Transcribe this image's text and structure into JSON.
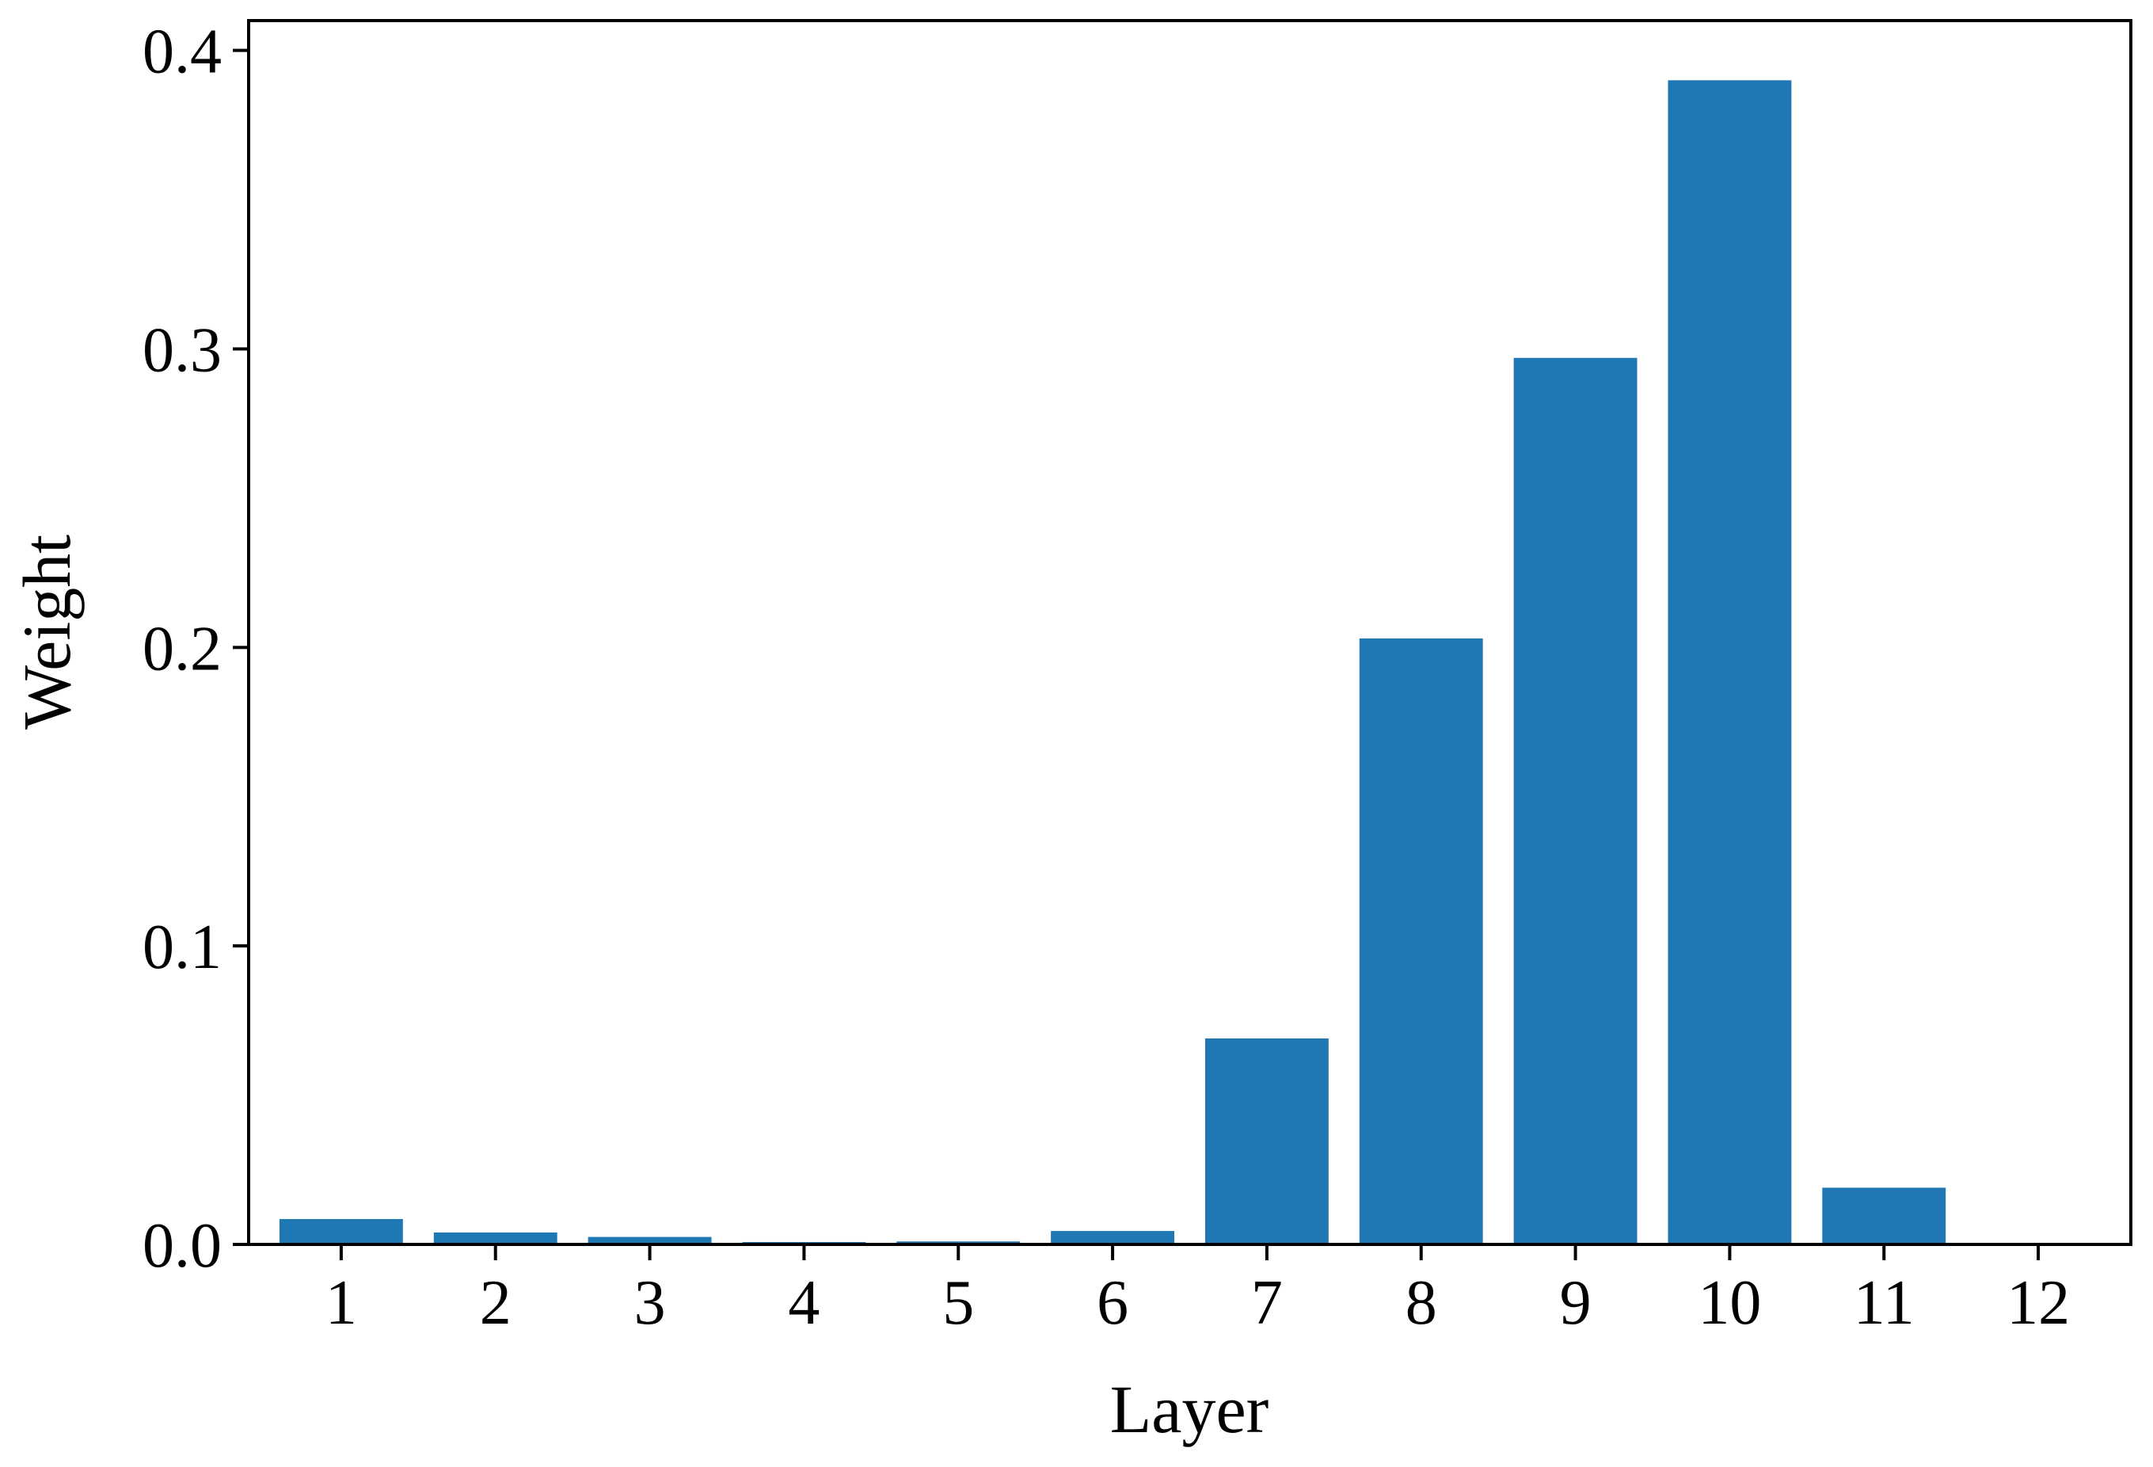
{
  "chart_data": {
    "type": "bar",
    "title": "",
    "xlabel": "Layer",
    "ylabel": "Weight",
    "categories": [
      "1",
      "2",
      "3",
      "4",
      "5",
      "6",
      "7",
      "8",
      "9",
      "10",
      "11",
      "12"
    ],
    "values": [
      0.0085,
      0.004,
      0.0025,
      0.0008,
      0.001,
      0.0045,
      0.069,
      0.203,
      0.297,
      0.39,
      0.019,
      0.0
    ],
    "ylim": [
      0,
      0.41
    ],
    "yticks": [
      "0.0",
      "0.1",
      "0.2",
      "0.3",
      "0.4"
    ],
    "bar_color": "#1f77b4",
    "grid": false,
    "legend": "none"
  }
}
